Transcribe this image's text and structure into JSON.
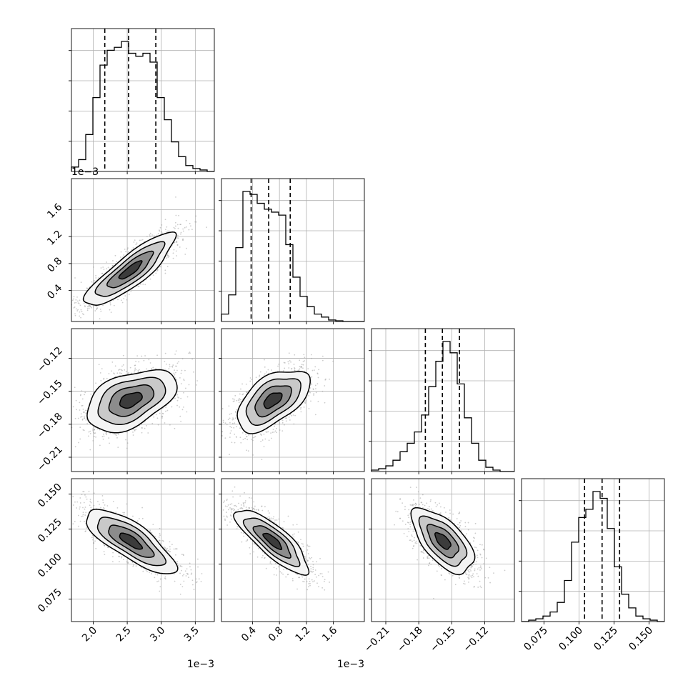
{
  "chart_data": {
    "type": "corner",
    "parameters": [
      {
        "range": [
          1.68,
          3.78
        ],
        "ticks": [
          2.0,
          2.5,
          3.0,
          3.5
        ],
        "tick_labels": [
          "2.0",
          "2.5",
          "3.0",
          "3.5"
        ],
        "offset_label": "1e−3",
        "quantiles": [
          2.17,
          2.52,
          2.92
        ],
        "hist": {
          "edges": [
            1.68,
            1.785,
            1.89,
            1.995,
            2.1,
            2.205,
            2.31,
            2.415,
            2.52,
            2.625,
            2.73,
            2.835,
            2.94,
            3.045,
            3.15,
            3.255,
            3.36,
            3.465,
            3.57,
            3.675,
            3.78
          ],
          "counts": [
            0.03,
            0.08,
            0.25,
            0.5,
            0.72,
            0.82,
            0.84,
            0.88,
            0.8,
            0.78,
            0.8,
            0.74,
            0.5,
            0.35,
            0.2,
            0.1,
            0.04,
            0.02,
            0.01,
            0.0
          ]
        }
      },
      {
        "range": [
          -0.06,
          2.06
        ],
        "ticks": [
          0.4,
          0.8,
          1.2,
          1.6
        ],
        "tick_labels": [
          "0.4",
          "0.8",
          "1.2",
          "1.6"
        ],
        "offset_label": "1e−3",
        "quantiles": [
          0.38,
          0.64,
          0.96
        ],
        "hist": {
          "edges": [
            -0.06,
            0.046,
            0.152,
            0.258,
            0.364,
            0.47,
            0.576,
            0.682,
            0.788,
            0.894,
            1.0,
            1.106,
            1.212,
            1.318,
            1.424,
            1.53,
            1.636,
            1.742,
            1.848,
            1.954,
            2.06
          ],
          "counts": [
            0.05,
            0.18,
            0.5,
            0.88,
            0.86,
            0.8,
            0.76,
            0.74,
            0.72,
            0.52,
            0.3,
            0.17,
            0.1,
            0.05,
            0.03,
            0.01,
            0.005,
            0.0,
            0.0,
            0.0
          ]
        }
      },
      {
        "range": [
          -0.223,
          -0.093
        ],
        "ticks": [
          -0.21,
          -0.18,
          -0.15,
          -0.12
        ],
        "tick_labels": [
          "−0.21",
          "−0.18",
          "−0.15",
          "−0.12"
        ],
        "offset_label": "",
        "quantiles": [
          -0.174,
          -0.1585,
          -0.143
        ],
        "hist": {
          "edges": [
            -0.223,
            -0.2165,
            -0.21,
            -0.2035,
            -0.197,
            -0.1905,
            -0.184,
            -0.1775,
            -0.171,
            -0.1645,
            -0.158,
            -0.1515,
            -0.145,
            -0.1385,
            -0.132,
            -0.1255,
            -0.119,
            -0.1125,
            -0.106,
            -0.0995,
            -0.093
          ],
          "counts": [
            0.01,
            0.02,
            0.04,
            0.08,
            0.14,
            0.2,
            0.28,
            0.4,
            0.6,
            0.78,
            0.92,
            0.84,
            0.62,
            0.38,
            0.2,
            0.08,
            0.03,
            0.01,
            0.0,
            0.0
          ]
        }
      },
      {
        "range": [
          0.059,
          0.161
        ],
        "ticks": [
          0.075,
          0.1,
          0.125,
          0.15
        ],
        "tick_labels": [
          "0.075",
          "0.100",
          "0.125",
          "0.150"
        ],
        "offset_label": "",
        "quantiles": [
          0.104,
          0.1165,
          0.129
        ],
        "hist": {
          "edges": [
            0.059,
            0.0641,
            0.0692,
            0.0743,
            0.0794,
            0.0845,
            0.0896,
            0.0947,
            0.0998,
            0.1049,
            0.11,
            0.1151,
            0.1202,
            0.1253,
            0.1304,
            0.1355,
            0.1406,
            0.1457,
            0.1508,
            0.1559,
            0.161
          ],
          "counts": [
            0.0,
            0.01,
            0.02,
            0.04,
            0.07,
            0.14,
            0.3,
            0.58,
            0.76,
            0.82,
            0.95,
            0.9,
            0.68,
            0.4,
            0.2,
            0.1,
            0.04,
            0.02,
            0.01,
            0.0
          ]
        }
      }
    ],
    "pairs": [
      {
        "x": 0,
        "y": 1,
        "mean": [
          2.55,
          0.7
        ],
        "sd": [
          0.33,
          0.27
        ],
        "rho": 0.86
      },
      {
        "x": 0,
        "y": 2,
        "mean": [
          2.55,
          -0.158
        ],
        "sd": [
          0.33,
          0.014
        ],
        "rho": 0.45
      },
      {
        "x": 1,
        "y": 2,
        "mean": [
          0.7,
          -0.158
        ],
        "sd": [
          0.27,
          0.014
        ],
        "rho": 0.55
      },
      {
        "x": 0,
        "y": 3,
        "mean": [
          2.55,
          0.1165
        ],
        "sd": [
          0.33,
          0.0115
        ],
        "rho": -0.78
      },
      {
        "x": 1,
        "y": 3,
        "mean": [
          0.7,
          0.1165
        ],
        "sd": [
          0.27,
          0.0115
        ],
        "rho": -0.82
      },
      {
        "x": 2,
        "y": 3,
        "mean": [
          -0.158,
          0.1165
        ],
        "sd": [
          0.014,
          0.0115
        ],
        "rho": -0.62
      }
    ],
    "contour_levels_sigma": [
      0.5,
      1.0,
      1.5,
      2.0
    ],
    "grid": true,
    "line_color": "#000000",
    "grid_color": "#b0b0b0",
    "point_color": "#9a9a9a"
  }
}
